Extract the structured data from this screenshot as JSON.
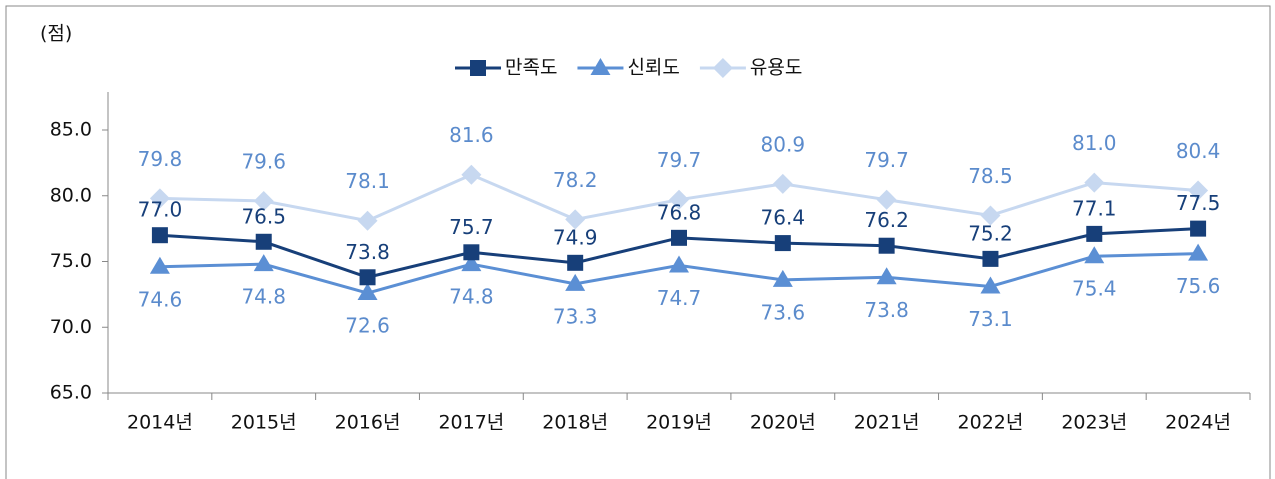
{
  "chart_data": {
    "type": "line",
    "y_unit_label": "(점)",
    "categories": [
      "2014년",
      "2015년",
      "2016년",
      "2017년",
      "2018년",
      "2019년",
      "2020년",
      "2021년",
      "2022년",
      "2023년",
      "2024년"
    ],
    "series": [
      {
        "name": "만족도",
        "color": "#173f79",
        "marker": "square",
        "label_position": "above",
        "label_color": "#173f79",
        "values": [
          77.0,
          76.5,
          73.8,
          75.7,
          74.9,
          76.8,
          76.4,
          76.2,
          75.2,
          77.1,
          77.5
        ],
        "value_labels": [
          "77.0",
          "76.5",
          "73.8",
          "75.7",
          "74.9",
          "76.8",
          "76.4",
          "76.2",
          "75.2",
          "77.1",
          "77.5"
        ]
      },
      {
        "name": "신뢰도",
        "color": "#5b8fd4",
        "marker": "triangle",
        "label_position": "below",
        "label_color": "#5b8bcc",
        "values": [
          74.6,
          74.8,
          72.6,
          74.8,
          73.3,
          74.7,
          73.6,
          73.8,
          73.1,
          75.4,
          75.6
        ],
        "value_labels": [
          "74.6",
          "74.8",
          "72.6",
          "74.8",
          "73.3",
          "74.7",
          "73.6",
          "73.8",
          "73.1",
          "75.4",
          "75.6"
        ]
      },
      {
        "name": "유용도",
        "color": "#c7d8f0",
        "marker": "diamond",
        "label_position": "above_far",
        "label_color": "#5b8bcc",
        "values": [
          79.8,
          79.6,
          78.1,
          81.6,
          78.2,
          79.7,
          80.9,
          79.7,
          78.5,
          81.0,
          80.4
        ],
        "value_labels": [
          "79.8",
          "79.6",
          "78.1",
          "81.6",
          "78.2",
          "79.7",
          "80.9",
          "79.7",
          "78.5",
          "81.0",
          "80.4"
        ]
      }
    ],
    "ylim": [
      65,
      85
    ],
    "yticks": [
      {
        "value": 65,
        "label": "65.0"
      },
      {
        "value": 70,
        "label": "70.0"
      },
      {
        "value": 75,
        "label": "75.0"
      },
      {
        "value": 80,
        "label": "80.0"
      },
      {
        "value": 85,
        "label": "85.0"
      }
    ],
    "grid": false,
    "legend": "top"
  }
}
